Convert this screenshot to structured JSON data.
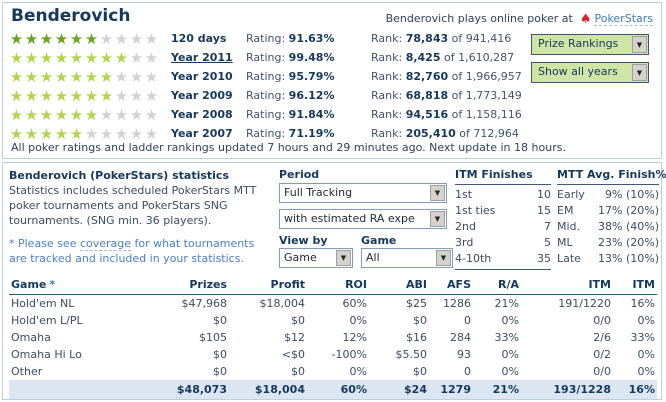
{
  "colors": {
    "star_dark": "#69a51f",
    "star_light": "#b2d44f",
    "star_empty": "#d2d2d2"
  },
  "header": {
    "title": "Benderovich",
    "plays_at_text": "Benderovich plays online poker at",
    "plays_at_link": "PokerStars",
    "spade_icon": "♠",
    "buttons": [
      {
        "label": "Prize Rankings"
      },
      {
        "label": "Show all years"
      }
    ],
    "update_notice": "All poker ratings and ladder rankings updated 7 hours and 29 minutes ago. Next update in 18 hours."
  },
  "ratings": {
    "rating_label": "Rating:",
    "rank_label": "Rank:",
    "of_label": "of",
    "rows": [
      {
        "label": "120 days",
        "stars": 6,
        "dark": true,
        "link": false,
        "rating": "91.63%",
        "rank": "78,843",
        "total": "941,416"
      },
      {
        "label": "Year 2011",
        "stars": 8,
        "dark": false,
        "link": true,
        "rating": "99.48%",
        "rank": "8,425",
        "total": "1,610,287"
      },
      {
        "label": "Year 2010",
        "stars": 7,
        "dark": false,
        "link": false,
        "rating": "95.79%",
        "rank": "82,760",
        "total": "1,966,957"
      },
      {
        "label": "Year 2009",
        "stars": 7,
        "dark": false,
        "link": false,
        "rating": "96.12%",
        "rank": "68,818",
        "total": "1,773,149"
      },
      {
        "label": "Year 2008",
        "stars": 6,
        "dark": false,
        "link": false,
        "rating": "91.84%",
        "rank": "94,516",
        "total": "1,158,116"
      },
      {
        "label": "Year 2007",
        "stars": 5,
        "dark": false,
        "link": false,
        "rating": "71.19%",
        "rank": "205,410",
        "total": "712,964"
      }
    ]
  },
  "stats_panel": {
    "title": "Benderovich (PokerStars) statistics",
    "description": "Statistics includes scheduled PokerStars MTT poker tournaments and PokerStars SNG tournaments. (SNG min. 36 players).",
    "note_prefix": "* Please see ",
    "note_link": "coverage",
    "note_suffix": " for what tournaments are tracked and included in your statistics.",
    "period_label": "Period",
    "period_select": "Full Tracking",
    "ra_select": "with estimated RA expe",
    "view_by_label": "View by",
    "game_label": "Game",
    "view_by_select": "Game",
    "game_select": "All",
    "itm_finishes": {
      "title": "ITM Finishes",
      "rows": [
        [
          "1st",
          "10"
        ],
        [
          "1st ties",
          "15"
        ],
        [
          "2nd",
          "7"
        ],
        [
          "3rd",
          "5"
        ],
        [
          "4-10th",
          "35"
        ]
      ]
    },
    "mtt_avg": {
      "title": "MTT Avg. Finish%",
      "rows": [
        [
          "Early",
          "9% (10%)"
        ],
        [
          "EM",
          "17% (20%)"
        ],
        [
          "Mid.",
          "38% (40%)"
        ],
        [
          "ML",
          "23% (20%)"
        ],
        [
          "Late",
          "13% (10%)"
        ]
      ]
    }
  },
  "stats_table": {
    "game_header": "Game",
    "game_header_asterisk": "*",
    "columns": [
      "Prizes",
      "Profit",
      "ROI",
      "ABI",
      "AFS",
      "R/A",
      "ITM",
      "ITM"
    ],
    "rows": [
      {
        "game": "Hold'em NL",
        "values": [
          "$47,968",
          "$18,004",
          "60%",
          "$25",
          "1286",
          "21%",
          "191/1220",
          "16%"
        ]
      },
      {
        "game": "Hold'em L/PL",
        "values": [
          "$0",
          "$0",
          "0%",
          "$0",
          "0",
          "0%",
          "0/0",
          "0%"
        ]
      },
      {
        "game": "Omaha",
        "values": [
          "$105",
          "$12",
          "12%",
          "$16",
          "284",
          "33%",
          "2/6",
          "33%"
        ]
      },
      {
        "game": "Omaha Hi Lo",
        "values": [
          "$0",
          "<$0",
          "-100%",
          "$5.50",
          "93",
          "0%",
          "0/2",
          "0%"
        ]
      },
      {
        "game": "Other",
        "values": [
          "$0",
          "$0",
          "0%",
          "$0",
          "0",
          "0%",
          "0/0",
          "0%"
        ]
      }
    ],
    "total": {
      "game": "",
      "values": [
        "$48,073",
        "$18,004",
        "60%",
        "$24",
        "1279",
        "21%",
        "193/1228",
        "16%"
      ]
    }
  }
}
